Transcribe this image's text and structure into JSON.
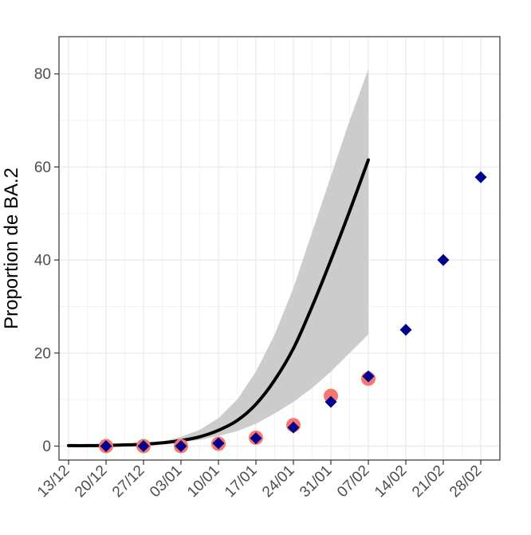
{
  "chart_data": {
    "type": "line",
    "title": "",
    "xlabel": "",
    "ylabel": "Proportion de BA.2",
    "x_tick_labels": [
      "13/12",
      "20/12",
      "27/12",
      "03/01",
      "10/01",
      "17/01",
      "24/01",
      "31/01",
      "07/02",
      "14/02",
      "21/02",
      "28/02"
    ],
    "ylim": [
      -3,
      88
    ],
    "y_ticks": [
      0,
      20,
      40,
      60,
      80
    ],
    "grid": true,
    "legend": "none",
    "series": [
      {
        "kind": "fit-line",
        "color": "#000000",
        "values": [
          0.1,
          0.1,
          0.15,
          0.25,
          0.4,
          0.7,
          1.2,
          2.0,
          3.4,
          5.5,
          9.0,
          14.2,
          21.0,
          30.0,
          40.0,
          50.5,
          61.5
        ]
      },
      {
        "kind": "confidence-band",
        "color": "#cccccc",
        "lower": [
          0.1,
          0.1,
          0.12,
          0.2,
          0.3,
          0.5,
          0.9,
          1.3,
          2.2,
          3.2,
          4.8,
          7.0,
          9.5,
          12.5,
          16.0,
          20.0,
          24.0
        ],
        "upper": [
          0.1,
          0.1,
          0.2,
          0.3,
          0.6,
          1.0,
          2.0,
          3.5,
          6.0,
          10.0,
          16.0,
          24.0,
          34.0,
          46.0,
          58.0,
          70.0,
          81.0
        ]
      },
      {
        "kind": "observed-points",
        "marker": "circle",
        "color": "#f8766d",
        "values": [
          0,
          0,
          0,
          0.5,
          1.8,
          4.5,
          10.8,
          14.5
        ]
      },
      {
        "kind": "observed-points",
        "marker": "diamond",
        "color": "#00008b",
        "values": [
          0,
          0,
          0,
          0.6,
          1.7,
          4.0,
          9.5,
          15.0,
          25.0,
          40.0,
          57.8
        ]
      }
    ]
  }
}
